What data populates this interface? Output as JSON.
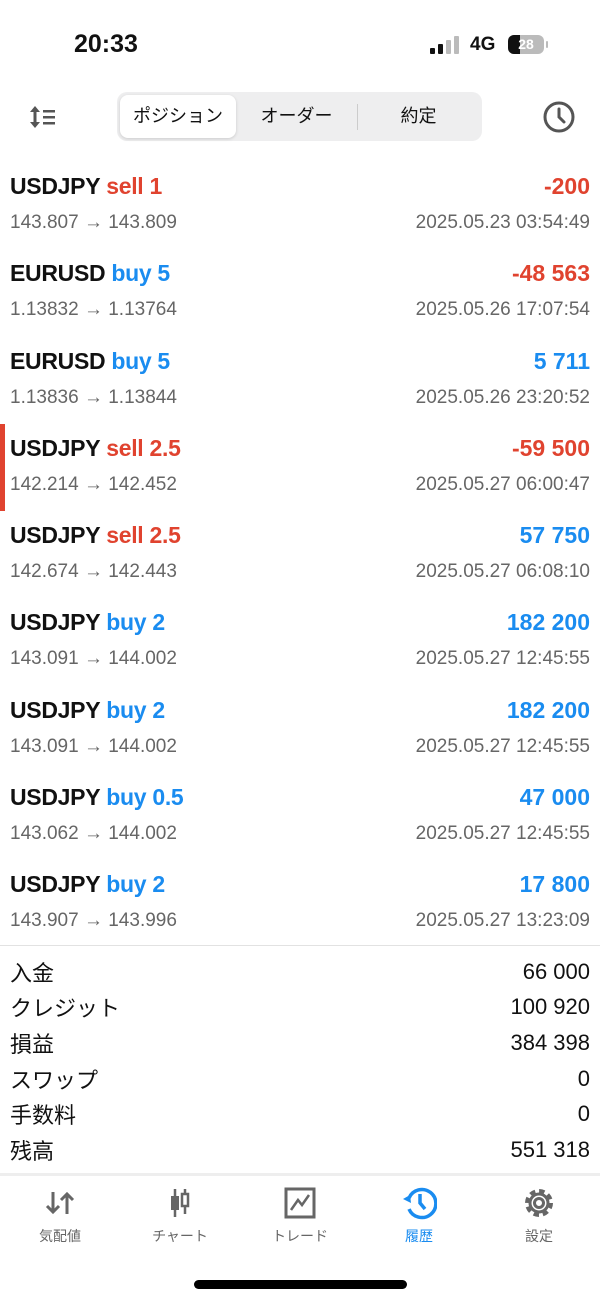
{
  "status_bar": {
    "time": "20:33",
    "network": "4G",
    "battery": "28"
  },
  "toolbar": {
    "segments": [
      "ポジション",
      "オーダー",
      "約定"
    ],
    "active_segment": "ポジション"
  },
  "colors": {
    "sell": "#e0432f",
    "buy": "#1a8cf0",
    "loss": "#e0432f",
    "profit": "#1a8cf0",
    "accent": "#1a8cf0"
  },
  "trades": [
    {
      "symbol": "USDJPY",
      "side": "sell",
      "lots": "1",
      "profit": "-200",
      "prices": "143.807 → 143.809",
      "date": "2025.05.23 03:54:49",
      "positive": false
    },
    {
      "symbol": "EURUSD",
      "side": "buy",
      "lots": "5",
      "profit": "-48 563",
      "prices": "1.13832 → 1.13764",
      "date": "2025.05.26 17:07:54",
      "positive": false
    },
    {
      "symbol": "EURUSD",
      "side": "buy",
      "lots": "5",
      "profit": "5 711",
      "prices": "1.13836 → 1.13844",
      "date": "2025.05.26 23:20:52",
      "positive": true
    },
    {
      "symbol": "USDJPY",
      "side": "sell",
      "lots": "2.5",
      "profit": "-59 500",
      "prices": "142.214 → 142.452",
      "date": "2025.05.27 06:00:47",
      "positive": false,
      "marked": true
    },
    {
      "symbol": "USDJPY",
      "side": "sell",
      "lots": "2.5",
      "profit": "57 750",
      "prices": "142.674 → 142.443",
      "date": "2025.05.27 06:08:10",
      "positive": true
    },
    {
      "symbol": "USDJPY",
      "side": "buy",
      "lots": "2",
      "profit": "182 200",
      "prices": "143.091 → 144.002",
      "date": "2025.05.27 12:45:55",
      "positive": true
    },
    {
      "symbol": "USDJPY",
      "side": "buy",
      "lots": "2",
      "profit": "182 200",
      "prices": "143.091 → 144.002",
      "date": "2025.05.27 12:45:55",
      "positive": true
    },
    {
      "symbol": "USDJPY",
      "side": "buy",
      "lots": "0.5",
      "profit": "47 000",
      "prices": "143.062 → 144.002",
      "date": "2025.05.27 12:45:55",
      "positive": true
    },
    {
      "symbol": "USDJPY",
      "side": "buy",
      "lots": "2",
      "profit": "17 800",
      "prices": "143.907 → 143.996",
      "date": "2025.05.27 13:23:09",
      "positive": true
    }
  ],
  "summary": [
    {
      "label": "入金",
      "value": "66 000"
    },
    {
      "label": "クレジット",
      "value": "100 920"
    },
    {
      "label": "損益",
      "value": "384 398"
    },
    {
      "label": "スワップ",
      "value": "0"
    },
    {
      "label": "手数料",
      "value": "0"
    },
    {
      "label": "残高",
      "value": "551 318"
    }
  ],
  "tabbar": {
    "items": [
      {
        "label": "気配値",
        "icon": "quotes-arrows-icon"
      },
      {
        "label": "チャート",
        "icon": "candlestick-icon"
      },
      {
        "label": "トレード",
        "icon": "trade-chart-icon"
      },
      {
        "label": "履歴",
        "icon": "history-icon",
        "active": true
      },
      {
        "label": "設定",
        "icon": "gear-icon"
      }
    ]
  }
}
